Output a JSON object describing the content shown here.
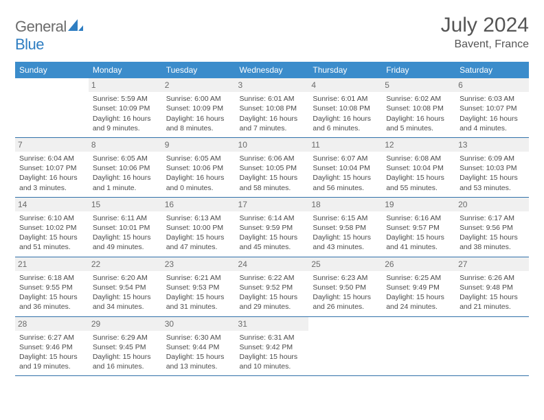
{
  "brand": {
    "part1": "General",
    "part2": "Blue"
  },
  "title": "July 2024",
  "location": "Bavent, France",
  "colors": {
    "header_bg": "#3b8ccb",
    "header_fg": "#ffffff",
    "row_border": "#2f6fa8",
    "daynum_bg": "#f0f0f0",
    "logo_gray": "#6b6b6b",
    "logo_blue": "#2f7ec2"
  },
  "weekdays": [
    "Sunday",
    "Monday",
    "Tuesday",
    "Wednesday",
    "Thursday",
    "Friday",
    "Saturday"
  ],
  "weeks": [
    [
      null,
      {
        "n": "1",
        "sr": "Sunrise: 5:59 AM",
        "ss": "Sunset: 10:09 PM",
        "dl": "Daylight: 16 hours and 9 minutes."
      },
      {
        "n": "2",
        "sr": "Sunrise: 6:00 AM",
        "ss": "Sunset: 10:09 PM",
        "dl": "Daylight: 16 hours and 8 minutes."
      },
      {
        "n": "3",
        "sr": "Sunrise: 6:01 AM",
        "ss": "Sunset: 10:08 PM",
        "dl": "Daylight: 16 hours and 7 minutes."
      },
      {
        "n": "4",
        "sr": "Sunrise: 6:01 AM",
        "ss": "Sunset: 10:08 PM",
        "dl": "Daylight: 16 hours and 6 minutes."
      },
      {
        "n": "5",
        "sr": "Sunrise: 6:02 AM",
        "ss": "Sunset: 10:08 PM",
        "dl": "Daylight: 16 hours and 5 minutes."
      },
      {
        "n": "6",
        "sr": "Sunrise: 6:03 AM",
        "ss": "Sunset: 10:07 PM",
        "dl": "Daylight: 16 hours and 4 minutes."
      }
    ],
    [
      {
        "n": "7",
        "sr": "Sunrise: 6:04 AM",
        "ss": "Sunset: 10:07 PM",
        "dl": "Daylight: 16 hours and 3 minutes."
      },
      {
        "n": "8",
        "sr": "Sunrise: 6:05 AM",
        "ss": "Sunset: 10:06 PM",
        "dl": "Daylight: 16 hours and 1 minute."
      },
      {
        "n": "9",
        "sr": "Sunrise: 6:05 AM",
        "ss": "Sunset: 10:06 PM",
        "dl": "Daylight: 16 hours and 0 minutes."
      },
      {
        "n": "10",
        "sr": "Sunrise: 6:06 AM",
        "ss": "Sunset: 10:05 PM",
        "dl": "Daylight: 15 hours and 58 minutes."
      },
      {
        "n": "11",
        "sr": "Sunrise: 6:07 AM",
        "ss": "Sunset: 10:04 PM",
        "dl": "Daylight: 15 hours and 56 minutes."
      },
      {
        "n": "12",
        "sr": "Sunrise: 6:08 AM",
        "ss": "Sunset: 10:04 PM",
        "dl": "Daylight: 15 hours and 55 minutes."
      },
      {
        "n": "13",
        "sr": "Sunrise: 6:09 AM",
        "ss": "Sunset: 10:03 PM",
        "dl": "Daylight: 15 hours and 53 minutes."
      }
    ],
    [
      {
        "n": "14",
        "sr": "Sunrise: 6:10 AM",
        "ss": "Sunset: 10:02 PM",
        "dl": "Daylight: 15 hours and 51 minutes."
      },
      {
        "n": "15",
        "sr": "Sunrise: 6:11 AM",
        "ss": "Sunset: 10:01 PM",
        "dl": "Daylight: 15 hours and 49 minutes."
      },
      {
        "n": "16",
        "sr": "Sunrise: 6:13 AM",
        "ss": "Sunset: 10:00 PM",
        "dl": "Daylight: 15 hours and 47 minutes."
      },
      {
        "n": "17",
        "sr": "Sunrise: 6:14 AM",
        "ss": "Sunset: 9:59 PM",
        "dl": "Daylight: 15 hours and 45 minutes."
      },
      {
        "n": "18",
        "sr": "Sunrise: 6:15 AM",
        "ss": "Sunset: 9:58 PM",
        "dl": "Daylight: 15 hours and 43 minutes."
      },
      {
        "n": "19",
        "sr": "Sunrise: 6:16 AM",
        "ss": "Sunset: 9:57 PM",
        "dl": "Daylight: 15 hours and 41 minutes."
      },
      {
        "n": "20",
        "sr": "Sunrise: 6:17 AM",
        "ss": "Sunset: 9:56 PM",
        "dl": "Daylight: 15 hours and 38 minutes."
      }
    ],
    [
      {
        "n": "21",
        "sr": "Sunrise: 6:18 AM",
        "ss": "Sunset: 9:55 PM",
        "dl": "Daylight: 15 hours and 36 minutes."
      },
      {
        "n": "22",
        "sr": "Sunrise: 6:20 AM",
        "ss": "Sunset: 9:54 PM",
        "dl": "Daylight: 15 hours and 34 minutes."
      },
      {
        "n": "23",
        "sr": "Sunrise: 6:21 AM",
        "ss": "Sunset: 9:53 PM",
        "dl": "Daylight: 15 hours and 31 minutes."
      },
      {
        "n": "24",
        "sr": "Sunrise: 6:22 AM",
        "ss": "Sunset: 9:52 PM",
        "dl": "Daylight: 15 hours and 29 minutes."
      },
      {
        "n": "25",
        "sr": "Sunrise: 6:23 AM",
        "ss": "Sunset: 9:50 PM",
        "dl": "Daylight: 15 hours and 26 minutes."
      },
      {
        "n": "26",
        "sr": "Sunrise: 6:25 AM",
        "ss": "Sunset: 9:49 PM",
        "dl": "Daylight: 15 hours and 24 minutes."
      },
      {
        "n": "27",
        "sr": "Sunrise: 6:26 AM",
        "ss": "Sunset: 9:48 PM",
        "dl": "Daylight: 15 hours and 21 minutes."
      }
    ],
    [
      {
        "n": "28",
        "sr": "Sunrise: 6:27 AM",
        "ss": "Sunset: 9:46 PM",
        "dl": "Daylight: 15 hours and 19 minutes."
      },
      {
        "n": "29",
        "sr": "Sunrise: 6:29 AM",
        "ss": "Sunset: 9:45 PM",
        "dl": "Daylight: 15 hours and 16 minutes."
      },
      {
        "n": "30",
        "sr": "Sunrise: 6:30 AM",
        "ss": "Sunset: 9:44 PM",
        "dl": "Daylight: 15 hours and 13 minutes."
      },
      {
        "n": "31",
        "sr": "Sunrise: 6:31 AM",
        "ss": "Sunset: 9:42 PM",
        "dl": "Daylight: 15 hours and 10 minutes."
      },
      null,
      null,
      null
    ]
  ]
}
